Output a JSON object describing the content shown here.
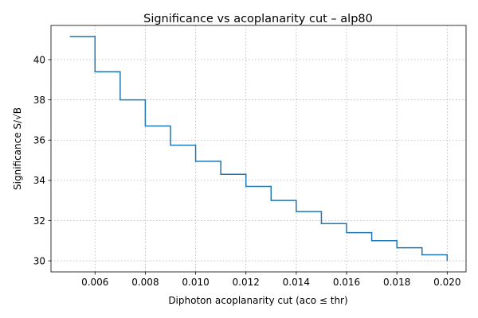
{
  "chart_data": {
    "type": "line",
    "drawstyle": "steps-post",
    "title": "Significance vs acoplanarity cut – alp80",
    "xlabel": "Diphoton acoplanarity cut (aco ≤ thr)",
    "ylabel": "Significance S/√B",
    "xlim": [
      0.00425,
      0.02075
    ],
    "ylim": [
      29.45,
      41.7
    ],
    "grid": true,
    "xticks": [
      0.006,
      0.008,
      0.01,
      0.012,
      0.014,
      0.016,
      0.018,
      0.02
    ],
    "xtick_labels": [
      "0.006",
      "0.008",
      "0.010",
      "0.012",
      "0.014",
      "0.016",
      "0.018",
      "0.020"
    ],
    "yticks": [
      30,
      32,
      34,
      36,
      38,
      40
    ],
    "ytick_labels": [
      "30",
      "32",
      "34",
      "36",
      "38",
      "40"
    ],
    "color": "#1f77b4",
    "series": [
      {
        "x": [
          0.005,
          0.006,
          0.007,
          0.008,
          0.009,
          0.01,
          0.011,
          0.012,
          0.013,
          0.014,
          0.015,
          0.016,
          0.017,
          0.018,
          0.019,
          0.02
        ],
        "y": [
          41.15,
          39.4,
          38.0,
          36.7,
          35.75,
          34.95,
          34.3,
          33.7,
          33.0,
          32.45,
          31.85,
          31.4,
          31.0,
          30.65,
          30.3,
          30.0
        ]
      }
    ]
  }
}
